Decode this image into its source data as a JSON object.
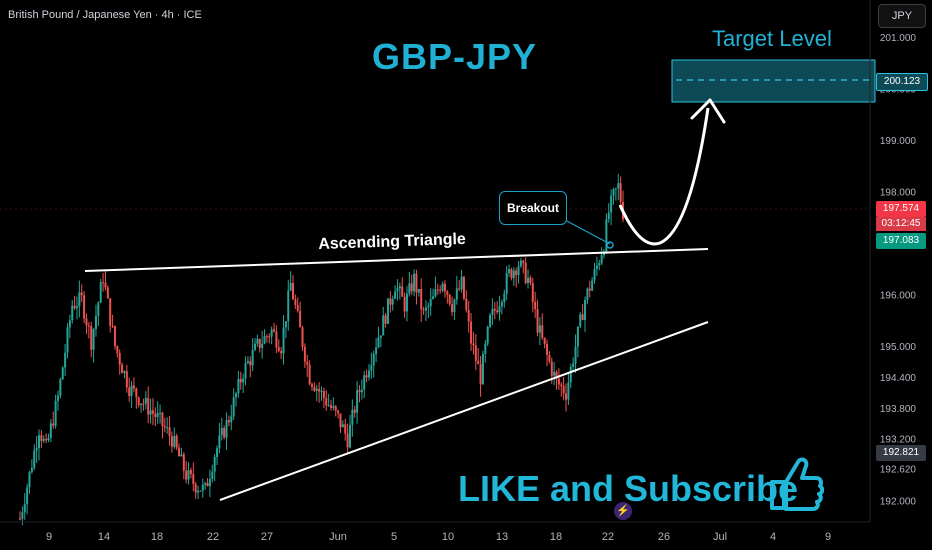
{
  "header": {
    "symbol_title": "British Pound / Japanese Yen · 4h · ICE"
  },
  "currency_button": "JPY",
  "annotations": {
    "title": "GBP-JPY",
    "target_title": "Target Level",
    "triangle_label": "Ascending Triangle",
    "breakout_label": "Breakout",
    "cta": "LIKE and Subscribe"
  },
  "price_scale": {
    "ticks": [
      "201.000",
      "200.000",
      "199.000",
      "198.000",
      "196.000",
      "195.000",
      "194.400",
      "193.800",
      "193.200",
      "192.620",
      "192.000"
    ],
    "tick_values": [
      201.0,
      200.0,
      199.0,
      198.0,
      196.0,
      195.0,
      194.4,
      193.8,
      193.2,
      192.62,
      192.0
    ],
    "tags": {
      "target": "200.123",
      "last": "197.574",
      "countdown": "03:12:45",
      "line": "197.083",
      "low": "192.821"
    }
  },
  "time_axis": {
    "labels": [
      "9",
      "14",
      "18",
      "22",
      "27",
      "Jun",
      "5",
      "10",
      "13",
      "18",
      "22",
      "26",
      "Jul",
      "4",
      "9"
    ]
  },
  "colors": {
    "up": "#26a69a",
    "down": "#ef5350",
    "accent": "#1fb0d3",
    "target_zone": "#0e4a56",
    "last_price": "#f23645",
    "line_tag": "#089981",
    "low_tag": "#363a45"
  },
  "chart_data": {
    "type": "candlestick",
    "symbol": "British Pound / Japanese Yen",
    "interval": "4h",
    "ylim": [
      191.5,
      201.6
    ],
    "target_zone": [
      199.75,
      200.55
    ],
    "target_level": 200.123,
    "last_price": 197.574,
    "resistance_level": 197.083,
    "waypoints": [
      [
        0,
        191.65
      ],
      [
        4,
        192.5
      ],
      [
        8,
        193.4
      ],
      [
        11,
        193.0
      ],
      [
        16,
        194.0
      ],
      [
        22,
        195.8
      ],
      [
        26,
        195.9
      ],
      [
        30,
        195.1
      ],
      [
        35,
        196.35
      ],
      [
        40,
        195.0
      ],
      [
        46,
        194.2
      ],
      [
        52,
        193.9
      ],
      [
        58,
        193.6
      ],
      [
        64,
        193.2
      ],
      [
        70,
        192.5
      ],
      [
        74,
        192.3
      ],
      [
        78,
        192.2
      ],
      [
        82,
        192.9
      ],
      [
        88,
        193.6
      ],
      [
        94,
        194.5
      ],
      [
        100,
        195.0
      ],
      [
        106,
        195.3
      ],
      [
        110,
        195.0
      ],
      [
        114,
        196.2
      ],
      [
        118,
        195.3
      ],
      [
        122,
        194.4
      ],
      [
        128,
        194.0
      ],
      [
        134,
        193.6
      ],
      [
        138,
        193.2
      ],
      [
        142,
        194.0
      ],
      [
        148,
        194.8
      ],
      [
        154,
        195.6
      ],
      [
        158,
        196.2
      ],
      [
        162,
        195.8
      ],
      [
        166,
        196.3
      ],
      [
        170,
        195.6
      ],
      [
        174,
        195.9
      ],
      [
        178,
        196.3
      ],
      [
        182,
        195.8
      ],
      [
        186,
        196.2
      ],
      [
        190,
        195.1
      ],
      [
        194,
        194.4
      ],
      [
        198,
        195.5
      ],
      [
        202,
        195.9
      ],
      [
        206,
        196.4
      ],
      [
        210,
        196.6
      ],
      [
        214,
        196.3
      ],
      [
        218,
        195.4
      ],
      [
        222,
        194.8
      ],
      [
        226,
        194.3
      ],
      [
        230,
        194.1
      ],
      [
        234,
        195.0
      ],
      [
        238,
        195.9
      ],
      [
        242,
        196.4
      ],
      [
        246,
        197.0
      ],
      [
        248,
        197.6
      ],
      [
        250,
        197.9
      ],
      [
        252,
        198.1
      ],
      [
        254,
        197.6
      ]
    ]
  }
}
